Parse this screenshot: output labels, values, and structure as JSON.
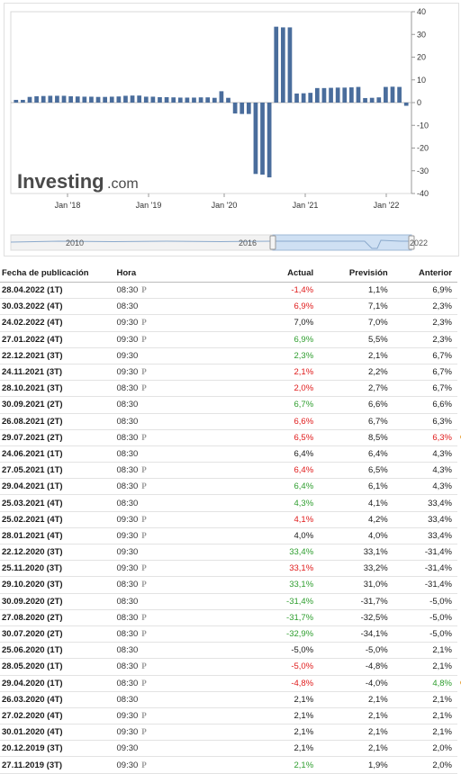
{
  "chart_data": {
    "type": "bar",
    "title": "",
    "xlabel": "",
    "ylabel": "",
    "ylim": [
      -40,
      40
    ],
    "yticks": [
      "40",
      "30",
      "20",
      "10",
      "0",
      "-10",
      "-20",
      "-30",
      "-40"
    ],
    "xtick_labels": [
      "Jan '18",
      "Jan '19",
      "Jan '20",
      "Jan '21",
      "Jan '22"
    ],
    "series": [
      {
        "color": "#4a6d9c",
        "values": [
          1.2,
          1.2,
          2.5,
          2.8,
          2.9,
          3.0,
          3.0,
          3.0,
          2.8,
          2.7,
          2.6,
          2.6,
          2.5,
          2.5,
          2.6,
          2.7,
          3.0,
          3.1,
          3.1,
          2.6,
          2.6,
          2.4,
          2.4,
          2.3,
          2.2,
          2.2,
          2.2,
          2.3,
          2.3,
          2.1,
          5.0,
          2.1,
          -4.8,
          -5.0,
          -5.0,
          -31.4,
          -31.7,
          -32.9,
          33.4,
          33.1,
          33.1,
          4.0,
          4.1,
          4.3,
          6.4,
          6.4,
          6.5,
          6.6,
          6.6,
          6.7,
          6.9,
          2.0,
          2.1,
          2.3,
          6.9,
          7.0,
          6.9,
          -1.4
        ]
      }
    ],
    "logo": {
      "main": "Investing",
      "sub": ".com"
    },
    "navigator_labels": [
      "2010",
      "2016",
      "2022"
    ]
  },
  "table": {
    "headers": {
      "date": "Fecha de publicación",
      "time": "Hora",
      "actual": "Actual",
      "forecast": "Previsión",
      "previous": "Anterior"
    },
    "rows": [
      {
        "date": "28.04.2022 (1T)",
        "time": "08:30",
        "prelim": true,
        "actual": "-1,4%",
        "actual_color": "neg",
        "forecast": "1,1%",
        "previous": "6,9%",
        "previous_color": "",
        "revised": false
      },
      {
        "date": "30.03.2022 (4T)",
        "time": "08:30",
        "prelim": false,
        "actual": "6,9%",
        "actual_color": "neg",
        "forecast": "7,1%",
        "previous": "2,3%",
        "previous_color": "",
        "revised": false
      },
      {
        "date": "24.02.2022 (4T)",
        "time": "09:30",
        "prelim": true,
        "actual": "7,0%",
        "actual_color": "",
        "forecast": "7,0%",
        "previous": "2,3%",
        "previous_color": "",
        "revised": false
      },
      {
        "date": "27.01.2022 (4T)",
        "time": "09:30",
        "prelim": true,
        "actual": "6,9%",
        "actual_color": "pos",
        "forecast": "5,5%",
        "previous": "2,3%",
        "previous_color": "",
        "revised": false
      },
      {
        "date": "22.12.2021 (3T)",
        "time": "09:30",
        "prelim": false,
        "actual": "2,3%",
        "actual_color": "pos",
        "forecast": "2,1%",
        "previous": "6,7%",
        "previous_color": "",
        "revised": false
      },
      {
        "date": "24.11.2021 (3T)",
        "time": "09:30",
        "prelim": true,
        "actual": "2,1%",
        "actual_color": "neg",
        "forecast": "2,2%",
        "previous": "6,7%",
        "previous_color": "",
        "revised": false
      },
      {
        "date": "28.10.2021 (3T)",
        "time": "08:30",
        "prelim": true,
        "actual": "2,0%",
        "actual_color": "neg",
        "forecast": "2,7%",
        "previous": "6,7%",
        "previous_color": "",
        "revised": false
      },
      {
        "date": "30.09.2021 (2T)",
        "time": "08:30",
        "prelim": false,
        "actual": "6,7%",
        "actual_color": "pos",
        "forecast": "6,6%",
        "previous": "6,6%",
        "previous_color": "",
        "revised": false
      },
      {
        "date": "26.08.2021 (2T)",
        "time": "08:30",
        "prelim": false,
        "actual": "6,6%",
        "actual_color": "neg",
        "forecast": "6,7%",
        "previous": "6,3%",
        "previous_color": "",
        "revised": false
      },
      {
        "date": "29.07.2021 (2T)",
        "time": "08:30",
        "prelim": true,
        "actual": "6,5%",
        "actual_color": "neg",
        "forecast": "8,5%",
        "previous": "6,3%",
        "previous_color": "neg",
        "revised": true
      },
      {
        "date": "24.06.2021 (1T)",
        "time": "08:30",
        "prelim": false,
        "actual": "6,4%",
        "actual_color": "",
        "forecast": "6,4%",
        "previous": "4,3%",
        "previous_color": "",
        "revised": false
      },
      {
        "date": "27.05.2021 (1T)",
        "time": "08:30",
        "prelim": true,
        "actual": "6,4%",
        "actual_color": "neg",
        "forecast": "6,5%",
        "previous": "4,3%",
        "previous_color": "",
        "revised": false
      },
      {
        "date": "29.04.2021 (1T)",
        "time": "08:30",
        "prelim": true,
        "actual": "6,4%",
        "actual_color": "pos",
        "forecast": "6,1%",
        "previous": "4,3%",
        "previous_color": "",
        "revised": false
      },
      {
        "date": "25.03.2021 (4T)",
        "time": "08:30",
        "prelim": false,
        "actual": "4,3%",
        "actual_color": "pos",
        "forecast": "4,1%",
        "previous": "33,4%",
        "previous_color": "",
        "revised": false
      },
      {
        "date": "25.02.2021 (4T)",
        "time": "09:30",
        "prelim": true,
        "actual": "4,1%",
        "actual_color": "neg",
        "forecast": "4,2%",
        "previous": "33,4%",
        "previous_color": "",
        "revised": false
      },
      {
        "date": "28.01.2021 (4T)",
        "time": "09:30",
        "prelim": true,
        "actual": "4,0%",
        "actual_color": "",
        "forecast": "4,0%",
        "previous": "33,4%",
        "previous_color": "",
        "revised": false
      },
      {
        "date": "22.12.2020 (3T)",
        "time": "09:30",
        "prelim": false,
        "actual": "33,4%",
        "actual_color": "pos",
        "forecast": "33,1%",
        "previous": "-31,4%",
        "previous_color": "",
        "revised": false
      },
      {
        "date": "25.11.2020 (3T)",
        "time": "09:30",
        "prelim": true,
        "actual": "33,1%",
        "actual_color": "neg",
        "forecast": "33,2%",
        "previous": "-31,4%",
        "previous_color": "",
        "revised": false
      },
      {
        "date": "29.10.2020 (3T)",
        "time": "08:30",
        "prelim": true,
        "actual": "33,1%",
        "actual_color": "pos",
        "forecast": "31,0%",
        "previous": "-31,4%",
        "previous_color": "",
        "revised": false
      },
      {
        "date": "30.09.2020 (2T)",
        "time": "08:30",
        "prelim": false,
        "actual": "-31,4%",
        "actual_color": "pos",
        "forecast": "-31,7%",
        "previous": "-5,0%",
        "previous_color": "",
        "revised": false
      },
      {
        "date": "27.08.2020 (2T)",
        "time": "08:30",
        "prelim": true,
        "actual": "-31,7%",
        "actual_color": "pos",
        "forecast": "-32,5%",
        "previous": "-5,0%",
        "previous_color": "",
        "revised": false
      },
      {
        "date": "30.07.2020 (2T)",
        "time": "08:30",
        "prelim": true,
        "actual": "-32,9%",
        "actual_color": "pos",
        "forecast": "-34,1%",
        "previous": "-5,0%",
        "previous_color": "",
        "revised": false
      },
      {
        "date": "25.06.2020 (1T)",
        "time": "08:30",
        "prelim": false,
        "actual": "-5,0%",
        "actual_color": "",
        "forecast": "-5,0%",
        "previous": "2,1%",
        "previous_color": "",
        "revised": false
      },
      {
        "date": "28.05.2020 (1T)",
        "time": "08:30",
        "prelim": true,
        "actual": "-5,0%",
        "actual_color": "neg",
        "forecast": "-4,8%",
        "previous": "2,1%",
        "previous_color": "",
        "revised": false
      },
      {
        "date": "29.04.2020 (1T)",
        "time": "08:30",
        "prelim": true,
        "actual": "-4,8%",
        "actual_color": "neg",
        "forecast": "-4,0%",
        "previous": "4,8%",
        "previous_color": "pos",
        "revised": true
      },
      {
        "date": "26.03.2020 (4T)",
        "time": "08:30",
        "prelim": false,
        "actual": "2,1%",
        "actual_color": "",
        "forecast": "2,1%",
        "previous": "2,1%",
        "previous_color": "",
        "revised": false
      },
      {
        "date": "27.02.2020 (4T)",
        "time": "09:30",
        "prelim": true,
        "actual": "2,1%",
        "actual_color": "",
        "forecast": "2,1%",
        "previous": "2,1%",
        "previous_color": "",
        "revised": false
      },
      {
        "date": "30.01.2020 (4T)",
        "time": "09:30",
        "prelim": true,
        "actual": "2,1%",
        "actual_color": "",
        "forecast": "2,1%",
        "previous": "2,1%",
        "previous_color": "",
        "revised": false
      },
      {
        "date": "20.12.2019 (3T)",
        "time": "09:30",
        "prelim": false,
        "actual": "2,1%",
        "actual_color": "",
        "forecast": "2,1%",
        "previous": "2,0%",
        "previous_color": "",
        "revised": false
      },
      {
        "date": "27.11.2019 (3T)",
        "time": "09:30",
        "prelim": true,
        "actual": "2,1%",
        "actual_color": "pos",
        "forecast": "1,9%",
        "previous": "2,0%",
        "previous_color": "",
        "revised": false
      }
    ]
  }
}
